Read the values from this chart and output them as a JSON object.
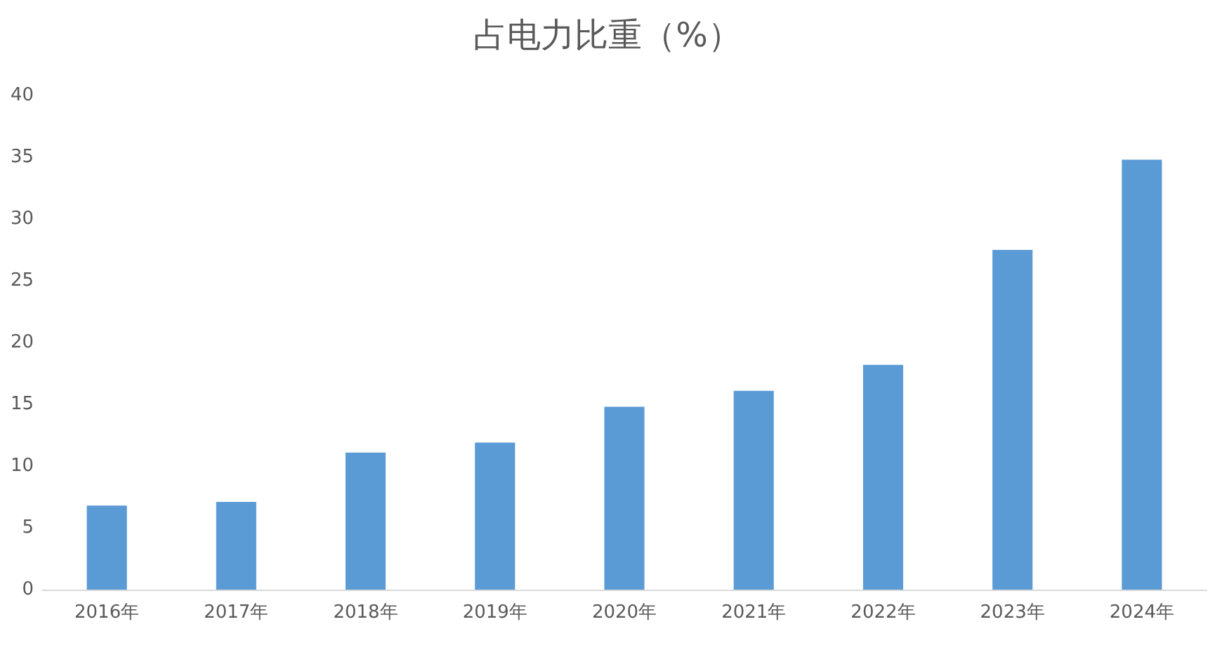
{
  "chart_data": {
    "type": "bar",
    "title": "占电力比重（%）",
    "categories": [
      "2016年",
      "2017年",
      "2018年",
      "2019年",
      "2020年",
      "2021年",
      "2022年",
      "2023年",
      "2024年"
    ],
    "values": [
      6.8,
      7.1,
      11.1,
      11.9,
      14.8,
      16.1,
      18.2,
      27.5,
      34.8
    ],
    "color": "#5b9bd5",
    "ylim": [
      0,
      40
    ],
    "yticks": [
      0,
      5,
      10,
      15,
      20,
      25,
      30,
      35,
      40
    ]
  }
}
